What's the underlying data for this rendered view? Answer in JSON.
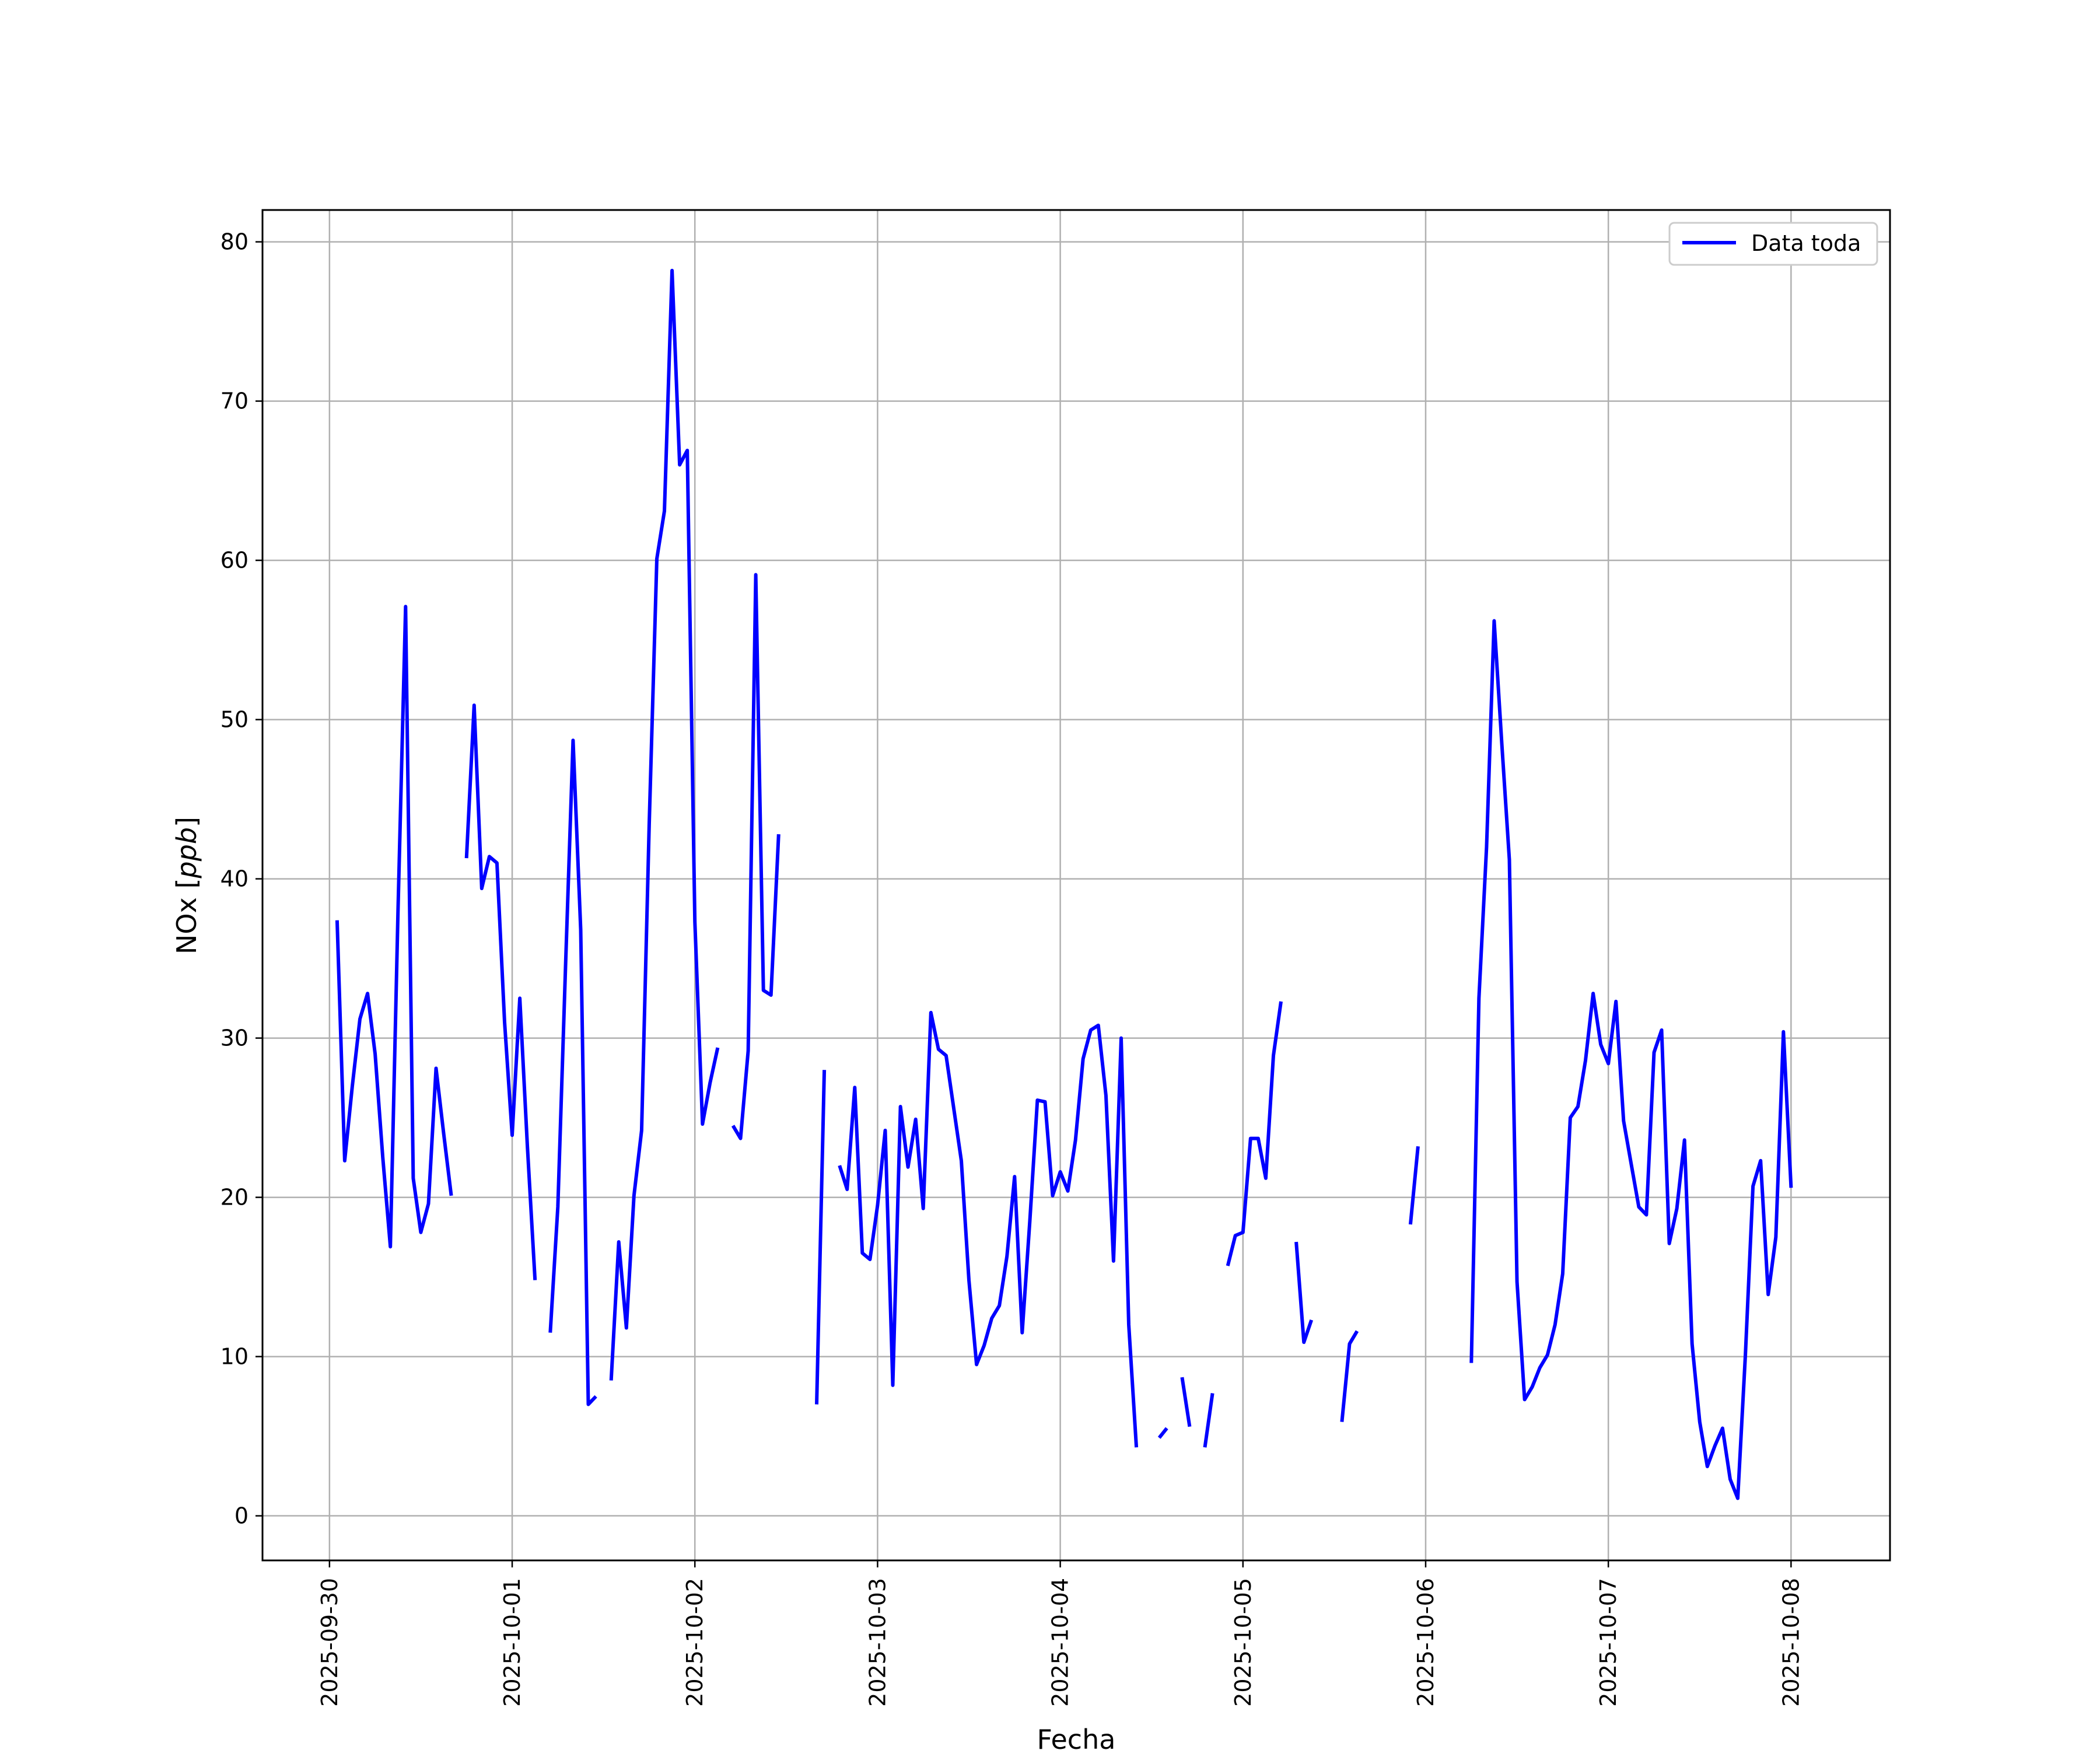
{
  "chart_data": {
    "type": "line",
    "xlabel": "Fecha",
    "ylabel": "NOx [ppb]",
    "ylabel_parts": {
      "prefix": "NOx [",
      "unit": "ppb",
      "suffix": "]"
    },
    "xlim": [
      "2025-09-29T15:12",
      "2025-10-08T13:00"
    ],
    "ylim": [
      -2.8,
      82
    ],
    "x_ticks": [
      "2025-09-30",
      "2025-10-01",
      "2025-10-02",
      "2025-10-03",
      "2025-10-04",
      "2025-10-05",
      "2025-10-06",
      "2025-10-07",
      "2025-10-08"
    ],
    "y_ticks": [
      "0",
      "10",
      "20",
      "30",
      "40",
      "50",
      "60",
      "70",
      "80"
    ],
    "grid": true,
    "legend_position": "top-right",
    "series_color": "#0000ff",
    "series": [
      {
        "name": "Data toda",
        "points": [
          [
            "2025-09-30T01:00",
            37.4
          ],
          [
            "2025-09-30T02:00",
            22.3
          ],
          [
            "2025-09-30T03:00",
            27.0
          ],
          [
            "2025-09-30T04:00",
            31.2
          ],
          [
            "2025-09-30T05:00",
            32.8
          ],
          [
            "2025-09-30T06:00",
            29.0
          ],
          [
            "2025-09-30T07:00",
            22.5
          ],
          [
            "2025-09-30T08:00",
            16.9
          ],
          [
            "2025-09-30T09:00",
            38.0
          ],
          [
            "2025-09-30T10:00",
            57.1
          ],
          [
            "2025-09-30T11:00",
            21.2
          ],
          [
            "2025-09-30T12:00",
            17.8
          ],
          [
            "2025-09-30T13:00",
            19.6
          ],
          [
            "2025-09-30T14:00",
            28.1
          ],
          [
            "2025-09-30T15:00",
            24.0
          ],
          [
            "2025-09-30T16:00",
            20.1
          ],
          [
            "2025-09-30T17:00",
            null
          ],
          [
            "2025-09-30T18:00",
            41.3
          ],
          [
            "2025-09-30T19:00",
            50.9
          ],
          [
            "2025-09-30T20:00",
            39.4
          ],
          [
            "2025-09-30T21:00",
            41.4
          ],
          [
            "2025-09-30T22:00",
            41.0
          ],
          [
            "2025-09-30T23:00",
            31.0
          ],
          [
            "2025-10-01T00:00",
            23.9
          ],
          [
            "2025-10-01T01:00",
            32.5
          ],
          [
            "2025-10-01T02:00",
            23.2
          ],
          [
            "2025-10-01T03:00",
            14.8
          ],
          [
            "2025-10-01T04:00",
            null
          ],
          [
            "2025-10-01T05:00",
            11.5
          ],
          [
            "2025-10-01T06:00",
            19.4
          ],
          [
            "2025-10-01T07:00",
            34.4
          ],
          [
            "2025-10-01T08:00",
            48.7
          ],
          [
            "2025-10-01T09:00",
            36.8
          ],
          [
            "2025-10-01T10:00",
            7.0
          ],
          [
            "2025-10-01T11:00",
            7.5
          ],
          [
            "2025-10-01T12:00",
            null
          ],
          [
            "2025-10-01T13:00",
            8.5
          ],
          [
            "2025-10-01T14:00",
            17.2
          ],
          [
            "2025-10-01T15:00",
            11.8
          ],
          [
            "2025-10-01T16:00",
            20.1
          ],
          [
            "2025-10-01T17:00",
            24.2
          ],
          [
            "2025-10-01T18:00",
            43.4
          ],
          [
            "2025-10-01T19:00",
            60.1
          ],
          [
            "2025-10-01T20:00",
            63.1
          ],
          [
            "2025-10-01T21:00",
            78.2
          ],
          [
            "2025-10-01T22:00",
            66.0
          ],
          [
            "2025-10-01T23:00",
            66.9
          ],
          [
            "2025-10-02T00:00",
            37.3
          ],
          [
            "2025-10-02T01:00",
            24.6
          ],
          [
            "2025-10-02T02:00",
            27.2
          ],
          [
            "2025-10-02T03:00",
            29.4
          ],
          [
            "2025-10-02T04:00",
            null
          ],
          [
            "2025-10-02T05:00",
            24.5
          ],
          [
            "2025-10-02T06:00",
            23.7
          ],
          [
            "2025-10-02T07:00",
            29.2
          ],
          [
            "2025-10-02T08:00",
            59.1
          ],
          [
            "2025-10-02T09:00",
            33.0
          ],
          [
            "2025-10-02T10:00",
            32.7
          ],
          [
            "2025-10-02T11:00",
            42.8
          ],
          [
            "2025-10-02T12:00",
            null
          ],
          [
            "2025-10-02T16:00",
            7.0
          ],
          [
            "2025-10-02T17:00",
            28.0
          ],
          [
            "2025-10-02T18:00",
            null
          ],
          [
            "2025-10-02T19:00",
            22.0
          ],
          [
            "2025-10-02T20:00",
            20.5
          ],
          [
            "2025-10-02T21:00",
            26.9
          ],
          [
            "2025-10-02T22:00",
            16.5
          ],
          [
            "2025-10-02T23:00",
            16.1
          ],
          [
            "2025-10-03T00:00",
            19.5
          ],
          [
            "2025-10-03T01:00",
            24.2
          ],
          [
            "2025-10-03T02:00",
            8.2
          ],
          [
            "2025-10-03T03:00",
            25.7
          ],
          [
            "2025-10-03T04:00",
            21.9
          ],
          [
            "2025-10-03T05:00",
            24.9
          ],
          [
            "2025-10-03T06:00",
            19.3
          ],
          [
            "2025-10-03T07:00",
            31.6
          ],
          [
            "2025-10-03T08:00",
            29.3
          ],
          [
            "2025-10-03T09:00",
            28.9
          ],
          [
            "2025-10-03T11:00",
            22.3
          ],
          [
            "2025-10-03T12:00",
            14.8
          ],
          [
            "2025-10-03T13:00",
            9.5
          ],
          [
            "2025-10-03T14:00",
            10.7
          ],
          [
            "2025-10-03T15:00",
            12.4
          ],
          [
            "2025-10-03T16:00",
            13.2
          ],
          [
            "2025-10-03T17:00",
            16.3
          ],
          [
            "2025-10-03T18:00",
            21.3
          ],
          [
            "2025-10-03T19:00",
            11.5
          ],
          [
            "2025-10-03T20:00",
            18.5
          ],
          [
            "2025-10-03T21:00",
            26.1
          ],
          [
            "2025-10-03T22:00",
            26.0
          ],
          [
            "2025-10-03T23:00",
            20.1
          ],
          [
            "2025-10-04T00:00",
            21.6
          ],
          [
            "2025-10-04T01:00",
            20.4
          ],
          [
            "2025-10-04T02:00",
            23.6
          ],
          [
            "2025-10-04T03:00",
            28.7
          ],
          [
            "2025-10-04T04:00",
            30.5
          ],
          [
            "2025-10-04T05:00",
            30.8
          ],
          [
            "2025-10-04T06:00",
            26.4
          ],
          [
            "2025-10-04T07:00",
            16.0
          ],
          [
            "2025-10-04T08:00",
            30.0
          ],
          [
            "2025-10-04T09:00",
            12.0
          ],
          [
            "2025-10-04T10:00",
            4.3
          ],
          [
            "2025-10-04T11:00",
            null
          ],
          [
            "2025-10-04T13:00",
            4.9
          ],
          [
            "2025-10-04T14:00",
            5.5
          ],
          [
            "2025-10-04T15:00",
            null
          ],
          [
            "2025-10-04T16:00",
            8.7
          ],
          [
            "2025-10-04T17:00",
            5.6
          ],
          [
            "2025-10-04T18:00",
            null
          ],
          [
            "2025-10-04T19:00",
            4.3
          ],
          [
            "2025-10-04T20:00",
            7.7
          ],
          [
            "2025-10-04T21:00",
            null
          ],
          [
            "2025-10-04T22:00",
            15.7
          ],
          [
            "2025-10-04T23:00",
            17.6
          ],
          [
            "2025-10-05T00:00",
            17.8
          ],
          [
            "2025-10-05T01:00",
            23.7
          ],
          [
            "2025-10-05T02:00",
            23.7
          ],
          [
            "2025-10-05T03:00",
            21.2
          ],
          [
            "2025-10-05T04:00",
            28.9
          ],
          [
            "2025-10-05T05:00",
            32.3
          ],
          [
            "2025-10-05T06:00",
            null
          ],
          [
            "2025-10-05T07:00",
            17.2
          ],
          [
            "2025-10-05T08:00",
            10.9
          ],
          [
            "2025-10-05T09:00",
            12.3
          ],
          [
            "2025-10-05T10:00",
            null
          ],
          [
            "2025-10-05T13:00",
            5.9
          ],
          [
            "2025-10-05T14:00",
            10.8
          ],
          [
            "2025-10-05T15:00",
            11.6
          ],
          [
            "2025-10-05T16:00",
            null
          ],
          [
            "2025-10-05T22:00",
            18.3
          ],
          [
            "2025-10-05T23:00",
            23.2
          ],
          [
            "2025-10-06T00:00",
            null
          ],
          [
            "2025-10-06T06:00",
            9.6
          ],
          [
            "2025-10-06T07:00",
            32.5
          ],
          [
            "2025-10-06T08:00",
            42.0
          ],
          [
            "2025-10-06T09:00",
            56.2
          ],
          [
            "2025-10-06T10:00",
            48.5
          ],
          [
            "2025-10-06T11:00",
            41.2
          ],
          [
            "2025-10-06T12:00",
            14.7
          ],
          [
            "2025-10-06T13:00",
            7.3
          ],
          [
            "2025-10-06T14:00",
            8.1
          ],
          [
            "2025-10-06T15:00",
            9.3
          ],
          [
            "2025-10-06T16:00",
            10.1
          ],
          [
            "2025-10-06T17:00",
            12.0
          ],
          [
            "2025-10-06T18:00",
            15.2
          ],
          [
            "2025-10-06T19:00",
            25.0
          ],
          [
            "2025-10-06T20:00",
            25.7
          ],
          [
            "2025-10-06T21:00",
            28.6
          ],
          [
            "2025-10-06T22:00",
            32.8
          ],
          [
            "2025-10-06T23:00",
            29.6
          ],
          [
            "2025-10-07T00:00",
            28.4
          ],
          [
            "2025-10-07T01:00",
            32.3
          ],
          [
            "2025-10-07T02:00",
            24.8
          ],
          [
            "2025-10-07T03:00",
            22.1
          ],
          [
            "2025-10-07T04:00",
            19.4
          ],
          [
            "2025-10-07T05:00",
            18.9
          ],
          [
            "2025-10-07T06:00",
            29.1
          ],
          [
            "2025-10-07T07:00",
            30.5
          ],
          [
            "2025-10-07T08:00",
            17.1
          ],
          [
            "2025-10-07T09:00",
            19.3
          ],
          [
            "2025-10-07T10:00",
            23.6
          ],
          [
            "2025-10-07T11:00",
            10.8
          ],
          [
            "2025-10-07T12:00",
            5.9
          ],
          [
            "2025-10-07T13:00",
            3.1
          ],
          [
            "2025-10-07T14:00",
            4.4
          ],
          [
            "2025-10-07T15:00",
            5.5
          ],
          [
            "2025-10-07T16:00",
            2.3
          ],
          [
            "2025-10-07T17:00",
            1.1
          ],
          [
            "2025-10-07T18:00",
            10.1
          ],
          [
            "2025-10-07T19:00",
            20.7
          ],
          [
            "2025-10-07T20:00",
            22.3
          ],
          [
            "2025-10-07T21:00",
            13.9
          ],
          [
            "2025-10-07T22:00",
            17.5
          ],
          [
            "2025-10-07T23:00",
            30.4
          ],
          [
            "2025-10-08T00:00",
            20.6
          ]
        ]
      }
    ]
  }
}
